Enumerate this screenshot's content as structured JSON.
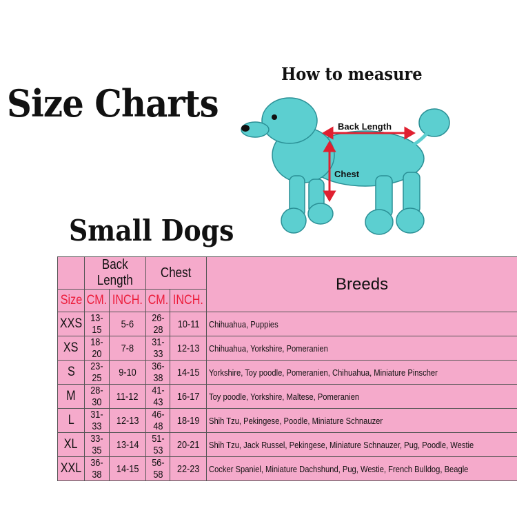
{
  "title": "Size Charts",
  "subtitle": "Small Dogs",
  "measure": {
    "heading": "How to measure",
    "back_length_label": "Back Length",
    "chest_label": "Chest",
    "dog_color": "#5ccfd0",
    "arrow_color": "#e02030"
  },
  "table": {
    "group_headers": {
      "back_length": "Back Length",
      "chest": "Chest",
      "breeds": "Breeds"
    },
    "sub_headers": {
      "size": "Size",
      "bl_cm": "CM.",
      "bl_inch": "INCH.",
      "ch_cm": "CM.",
      "ch_inch": "INCH."
    },
    "rows": [
      {
        "size": "XXS",
        "bl_cm": "13-15",
        "bl_inch": "5-6",
        "ch_cm": "26-28",
        "ch_inch": "10-11",
        "breeds": "Chihuahua, Puppies"
      },
      {
        "size": "XS",
        "bl_cm": "18-20",
        "bl_inch": "7-8",
        "ch_cm": "31-33",
        "ch_inch": "12-13",
        "breeds": "Chihuahua, Yorkshire, Pomeranien"
      },
      {
        "size": "S",
        "bl_cm": "23-25",
        "bl_inch": "9-10",
        "ch_cm": "36-38",
        "ch_inch": "14-15",
        "breeds": "Yorkshire, Toy poodle, Pomeranien, Chihuahua, Miniature Pinscher"
      },
      {
        "size": "M",
        "bl_cm": "28-30",
        "bl_inch": "11-12",
        "ch_cm": "41-43",
        "ch_inch": "16-17",
        "breeds": "Toy poodle, Yorkshire, Maltese, Pomeranien"
      },
      {
        "size": "L",
        "bl_cm": "31-33",
        "bl_inch": "12-13",
        "ch_cm": "46-48",
        "ch_inch": "18-19",
        "breeds": "Shih Tzu, Pekingese, Poodle, Miniature Schnauzer"
      },
      {
        "size": "XL",
        "bl_cm": "33-35",
        "bl_inch": "13-14",
        "ch_cm": "51-53",
        "ch_inch": "20-21",
        "breeds": "Shih Tzu, Jack Russel, Pekingese, Miniature Schnauzer, Pug, Poodle, Westie"
      },
      {
        "size": "XXL",
        "bl_cm": "36-38",
        "bl_inch": "14-15",
        "ch_cm": "56-58",
        "ch_inch": "22-23",
        "breeds": "Cocker Spaniel, Miniature Dachshund, Pug, Westie, French Bulldog, Beagle"
      }
    ],
    "colors": {
      "background": "#f5aacb",
      "header_red": "#ec1c3a"
    }
  }
}
